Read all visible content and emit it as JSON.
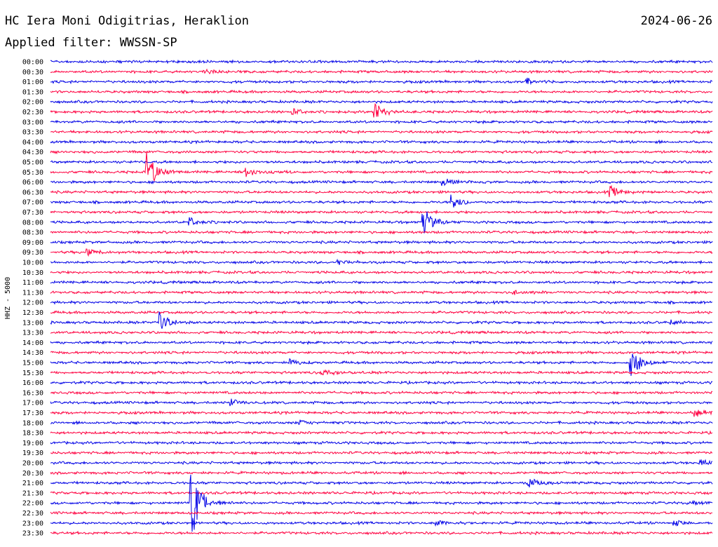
{
  "header": {
    "station": "HC Iera Moni Odigitrias, Heraklion",
    "date": "2024-06-26",
    "filter": "Applied filter: WWSSN-SP"
  },
  "chart_data": {
    "type": "line",
    "title": "HC Iera Moni Odigitrias, Heraklion",
    "subtitle": "Applied filter: WWSSN-SP",
    "ylabel": "HHZ - 5000",
    "xlabel": "",
    "grid": false,
    "colors": {
      "even_rows": "#0000e6",
      "odd_rows": "#ff0040",
      "text": "#000000"
    },
    "rows": [
      {
        "label": "00:00"
      },
      {
        "label": "00:30"
      },
      {
        "label": "01:00"
      },
      {
        "label": "01:30"
      },
      {
        "label": "02:00"
      },
      {
        "label": "02:30"
      },
      {
        "label": "03:00"
      },
      {
        "label": "03:30"
      },
      {
        "label": "04:00"
      },
      {
        "label": "04:30"
      },
      {
        "label": "05:00"
      },
      {
        "label": "05:30"
      },
      {
        "label": "06:00"
      },
      {
        "label": "06:30"
      },
      {
        "label": "07:00"
      },
      {
        "label": "07:30"
      },
      {
        "label": "08:00"
      },
      {
        "label": "08:30"
      },
      {
        "label": "09:00"
      },
      {
        "label": "09:30"
      },
      {
        "label": "10:00"
      },
      {
        "label": "10:30"
      },
      {
        "label": "11:00"
      },
      {
        "label": "11:30"
      },
      {
        "label": "12:00"
      },
      {
        "label": "12:30"
      },
      {
        "label": "13:00"
      },
      {
        "label": "13:30"
      },
      {
        "label": "14:00"
      },
      {
        "label": "14:30"
      },
      {
        "label": "15:00"
      },
      {
        "label": "15:30"
      },
      {
        "label": "16:00"
      },
      {
        "label": "16:30"
      },
      {
        "label": "17:00"
      },
      {
        "label": "17:30"
      },
      {
        "label": "18:00"
      },
      {
        "label": "18:30"
      },
      {
        "label": "19:00"
      },
      {
        "label": "19:30"
      },
      {
        "label": "20:00"
      },
      {
        "label": "20:30"
      },
      {
        "label": "21:00"
      },
      {
        "label": "21:30"
      },
      {
        "label": "22:00"
      },
      {
        "label": "22:30"
      },
      {
        "label": "23:00"
      },
      {
        "label": "23:30"
      }
    ],
    "events": [
      {
        "row": "00:30",
        "minute": 7.0,
        "amplitude": 0.3
      },
      {
        "row": "01:00",
        "minute": 21.6,
        "amplitude": 0.35
      },
      {
        "row": "02:30",
        "minute": 14.7,
        "amplitude": 1.2
      },
      {
        "row": "02:30",
        "minute": 11.0,
        "amplitude": 0.4
      },
      {
        "row": "05:30",
        "minute": 4.4,
        "amplitude": 2.5
      },
      {
        "row": "05:30",
        "minute": 8.9,
        "amplitude": 0.6
      },
      {
        "row": "06:00",
        "minute": 17.8,
        "amplitude": 0.5
      },
      {
        "row": "06:30",
        "minute": 25.4,
        "amplitude": 0.7
      },
      {
        "row": "07:00",
        "minute": 18.2,
        "amplitude": 1.0
      },
      {
        "row": "08:00",
        "minute": 6.3,
        "amplitude": 0.6
      },
      {
        "row": "08:00",
        "minute": 16.9,
        "amplitude": 1.8
      },
      {
        "row": "09:30",
        "minute": 1.7,
        "amplitude": 0.35
      },
      {
        "row": "10:00",
        "minute": 13.0,
        "amplitude": 0.3
      },
      {
        "row": "11:30",
        "minute": 21.0,
        "amplitude": 0.35
      },
      {
        "row": "13:00",
        "minute": 5.0,
        "amplitude": 1.3
      },
      {
        "row": "13:00",
        "minute": 28.1,
        "amplitude": 0.3
      },
      {
        "row": "15:00",
        "minute": 10.9,
        "amplitude": 0.4
      },
      {
        "row": "15:00",
        "minute": 26.3,
        "amplitude": 2.2
      },
      {
        "row": "15:30",
        "minute": 12.3,
        "amplitude": 0.4
      },
      {
        "row": "17:00",
        "minute": 8.2,
        "amplitude": 0.4
      },
      {
        "row": "17:30",
        "minute": 29.2,
        "amplitude": 0.5
      },
      {
        "row": "18:00",
        "minute": 11.3,
        "amplitude": 0.3
      },
      {
        "row": "20:00",
        "minute": 29.5,
        "amplitude": 0.3
      },
      {
        "row": "21:00",
        "minute": 21.7,
        "amplitude": 0.6
      },
      {
        "row": "22:00",
        "minute": 6.4,
        "amplitude": 4.5
      },
      {
        "row": "22:00",
        "minute": 28.9,
        "amplitude": 0.35
      },
      {
        "row": "23:00",
        "minute": 17.5,
        "amplitude": 0.3
      },
      {
        "row": "23:00",
        "minute": 28.3,
        "amplitude": 0.3
      }
    ]
  }
}
